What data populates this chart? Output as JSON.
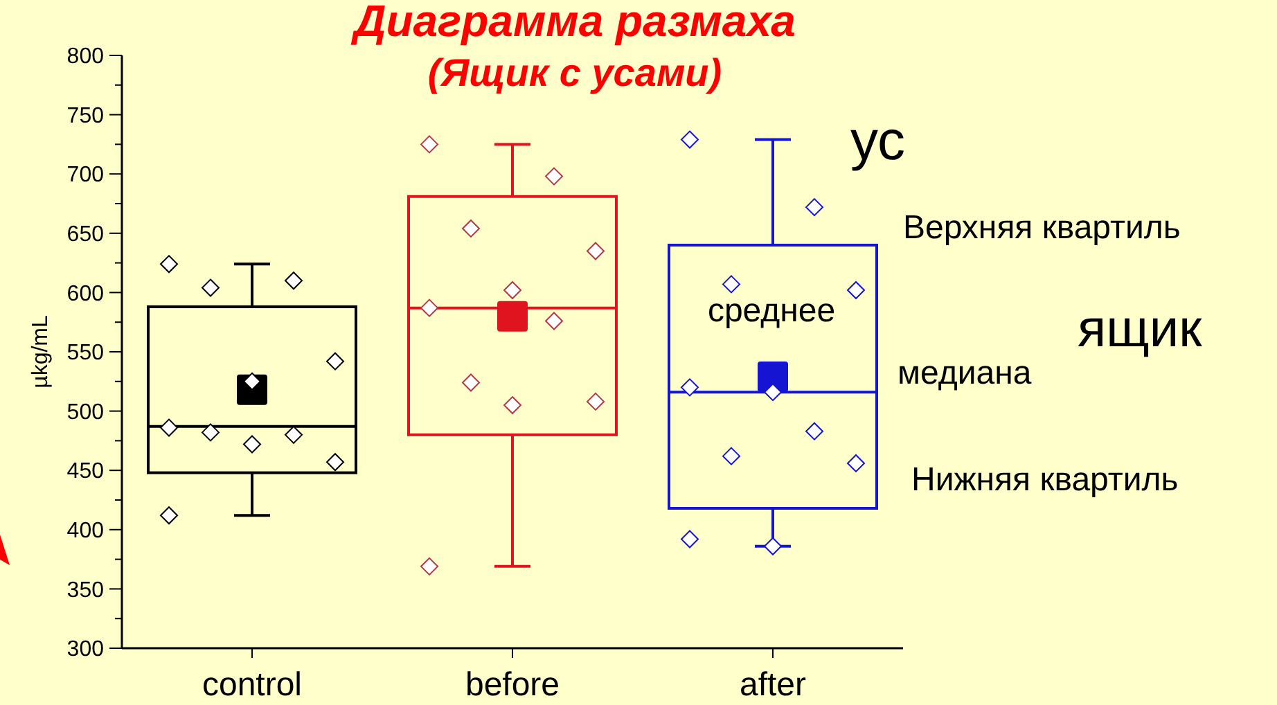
{
  "chart_data": {
    "type": "box",
    "title": "Диаграмма размаха",
    "subtitle": "(Ящик с усами)",
    "ylabel": "µkg/mL",
    "categories": [
      "control",
      "before",
      "after"
    ],
    "ylim": [
      300,
      800
    ],
    "yticks": [
      300,
      {
        "value": 325,
        "label": null
      },
      350,
      {
        "value": 375,
        "label": null
      },
      400,
      {
        "value": 425,
        "label": null
      },
      450,
      {
        "value": 475,
        "label": null
      },
      500,
      {
        "value": 525,
        "label": null
      },
      550,
      {
        "value": 575,
        "label": null
      },
      600,
      {
        "value": 625,
        "label": null
      },
      650,
      {
        "value": 675,
        "label": null
      },
      700,
      {
        "value": 725,
        "label": null
      },
      750,
      {
        "value": 775,
        "label": null
      },
      800
    ],
    "marker": "diamond",
    "annotations": [
      "ус",
      "Верхняя квартиль",
      "среднее",
      "ящик",
      "медиана",
      "Нижняя квартиль"
    ],
    "series": [
      {
        "colors": [
          "#000000",
          "#e0141e",
          "#1414d2"
        ],
        "boxes": [
          {
            "low": 412,
            "q1": 448,
            "median": 487,
            "q3": 588,
            "high": 624,
            "mean": 518
          },
          {
            "low": 369,
            "q1": 480,
            "median": 587,
            "q3": 681,
            "high": 725,
            "mean": 580
          },
          {
            "low": 386,
            "q1": 418,
            "median": 516,
            "q3": 640,
            "high": 729,
            "mean": 529
          }
        ]
      },
      {
        "type": "scatter",
        "color": "#000000",
        "x": [
          "control",
          "control",
          "control",
          "control",
          "control",
          "control",
          "control",
          "control",
          "control",
          "control",
          "control"
        ],
        "values": [
          624,
          610,
          604,
          542,
          525,
          486,
          480,
          482,
          457,
          472,
          412
        ]
      },
      {
        "type": "scatter",
        "color": "#b03a48",
        "x": [
          "before",
          "before",
          "before",
          "before",
          "before",
          "before",
          "before",
          "before",
          "before",
          "before",
          "before"
        ],
        "values": [
          725,
          698,
          654,
          635,
          602,
          587,
          576,
          524,
          508,
          505,
          369
        ]
      },
      {
        "type": "scatter",
        "color": "#1414d2",
        "x": [
          "after",
          "after",
          "after",
          "after",
          "after",
          "after",
          "after",
          "after",
          "after",
          "after",
          "after"
        ],
        "values": [
          729,
          672,
          607,
          602,
          516,
          520,
          483,
          462,
          456,
          386,
          392
        ]
      }
    ]
  }
}
